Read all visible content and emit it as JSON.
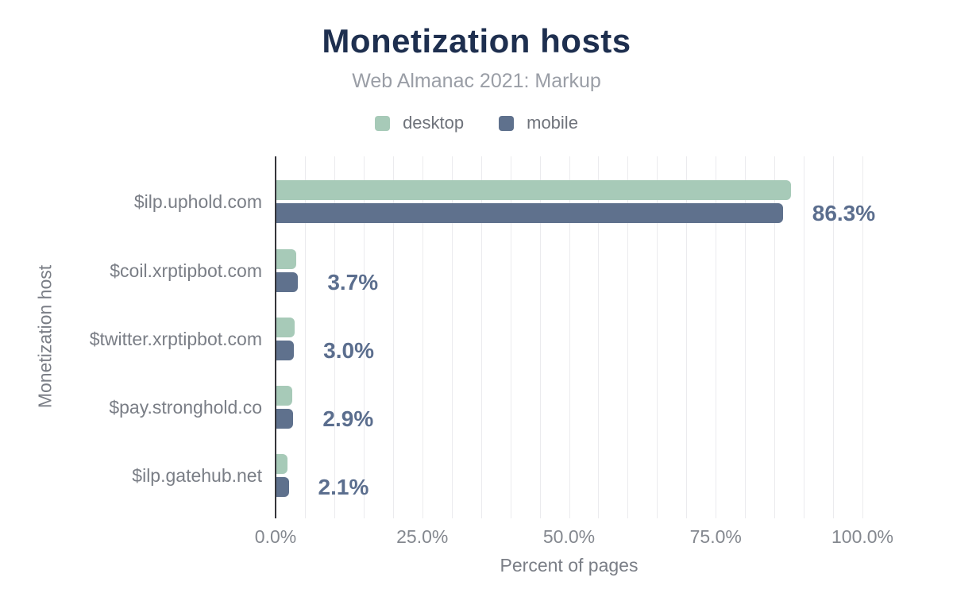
{
  "chart_data": {
    "type": "bar",
    "orientation": "horizontal",
    "title": "Monetization hosts",
    "subtitle": "Web Almanac 2021: Markup",
    "xlabel": "Percent of pages",
    "ylabel": "Monetization host",
    "categories": [
      "$ilp.uphold.com",
      "$coil.xrptipbot.com",
      "$twitter.xrptipbot.com",
      "$pay.stronghold.co",
      "$ilp.gatehub.net"
    ],
    "series": [
      {
        "name": "desktop",
        "color": "#a7cab8",
        "values": [
          87.7,
          3.4,
          3.1,
          2.7,
          1.9
        ]
      },
      {
        "name": "mobile",
        "color": "#5f718d",
        "values": [
          86.3,
          3.7,
          3.0,
          2.9,
          2.1
        ]
      }
    ],
    "annotations": {
      "series": "mobile",
      "labels": [
        "86.3%",
        "3.7%",
        "3.0%",
        "2.9%",
        "2.1%"
      ]
    },
    "x_tick_labels": [
      "0.0%",
      "25.0%",
      "50.0%",
      "75.0%",
      "100.0%"
    ],
    "x_tick_values": [
      0,
      25,
      50,
      75,
      100
    ],
    "xlim": [
      0,
      100
    ],
    "gridline_step": 5,
    "grid": true,
    "legend_position": "top"
  },
  "colors": {
    "title": "#1e2f4f",
    "subtitle": "#9a9ea6",
    "text_gray": "#7a7e86",
    "tick_gray": "#84888f",
    "legend_text": "#6f737b",
    "value_label": "#5b6e8e",
    "axis_line": "#35353b",
    "gridline": "#ebebee",
    "desktop_bar": "#a7cab8",
    "mobile_bar": "#5f718d",
    "background": "#ffffff"
  }
}
